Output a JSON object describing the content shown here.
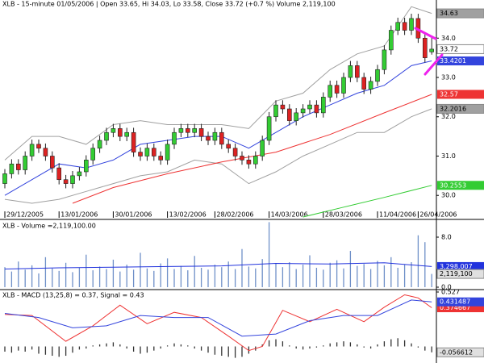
{
  "chart_data": [
    {
      "type": "candlestick",
      "title": "XLB - 15-minute 01/05/2006 | Open 33.65, Hi 34.03, Lo 33.58, Close 33.72 (+0.7 %) Volume 2,119,100",
      "categories": [
        "29/12/2005",
        null,
        null,
        null,
        null,
        null,
        null,
        null,
        "13/01/2006",
        null,
        null,
        null,
        null,
        null,
        null,
        null,
        "30/01/2006",
        null,
        null,
        null,
        null,
        null,
        null,
        null,
        "13/02/2006",
        null,
        null,
        null,
        null,
        null,
        null,
        "28/02/2006",
        null,
        null,
        null,
        null,
        null,
        null,
        null,
        "14/03/2006",
        null,
        null,
        null,
        null,
        null,
        null,
        null,
        "28/03/2006",
        null,
        null,
        null,
        null,
        null,
        null,
        null,
        "11/04/2006",
        null,
        null,
        null,
        null,
        null,
        "26/04/2006",
        null,
        null
      ],
      "open": [
        30.3,
        30.55,
        30.8,
        30.65,
        31.0,
        31.3,
        31.2,
        31.0,
        30.7,
        30.4,
        30.3,
        30.5,
        30.6,
        30.9,
        31.2,
        31.4,
        31.6,
        31.7,
        31.5,
        31.6,
        31.1,
        31.0,
        31.2,
        31.0,
        30.9,
        31.3,
        31.6,
        31.7,
        31.6,
        31.7,
        31.5,
        31.4,
        31.6,
        31.3,
        31.2,
        31.0,
        30.9,
        30.8,
        31.0,
        31.4,
        32.0,
        32.3,
        32.2,
        31.9,
        32.1,
        32.2,
        32.3,
        32.1,
        32.5,
        32.8,
        32.6,
        33.0,
        33.3,
        33.0,
        32.7,
        32.9,
        33.2,
        33.7,
        34.2,
        34.4,
        34.2,
        34.5,
        34.0,
        33.65
      ],
      "high": [
        30.67,
        30.92,
        30.92,
        31.12,
        31.42,
        31.42,
        31.32,
        31.12,
        30.82,
        30.52,
        30.62,
        30.72,
        31.02,
        31.32,
        31.52,
        31.72,
        31.82,
        31.82,
        31.72,
        31.72,
        31.22,
        31.32,
        31.32,
        31.12,
        31.42,
        31.72,
        31.82,
        31.82,
        31.82,
        31.82,
        31.62,
        31.72,
        31.72,
        31.42,
        31.32,
        31.12,
        31.02,
        31.12,
        31.52,
        32.12,
        32.42,
        32.42,
        32.32,
        32.22,
        32.32,
        32.42,
        32.42,
        32.62,
        32.92,
        32.92,
        33.12,
        33.42,
        33.42,
        33.12,
        33.02,
        33.32,
        33.82,
        34.32,
        34.52,
        34.52,
        34.62,
        34.62,
        34.12,
        34.03
      ],
      "low": [
        30.18,
        30.43,
        30.53,
        30.53,
        30.88,
        31.08,
        30.88,
        30.58,
        30.28,
        30.18,
        30.18,
        30.38,
        30.48,
        30.78,
        31.08,
        31.28,
        31.48,
        31.38,
        31.38,
        30.98,
        30.88,
        30.88,
        30.88,
        30.78,
        30.78,
        31.18,
        31.48,
        31.48,
        31.48,
        31.38,
        31.28,
        31.28,
        31.18,
        31.08,
        30.88,
        30.78,
        30.68,
        30.68,
        30.88,
        31.28,
        31.88,
        32.08,
        31.78,
        31.78,
        31.98,
        32.08,
        31.98,
        31.98,
        32.38,
        32.48,
        32.48,
        32.88,
        32.88,
        32.58,
        32.58,
        32.78,
        33.08,
        33.58,
        34.08,
        34.08,
        34.08,
        33.88,
        33.38,
        33.58
      ],
      "close": [
        30.55,
        30.8,
        30.65,
        31.0,
        31.3,
        31.2,
        31.0,
        30.7,
        30.4,
        30.3,
        30.5,
        30.6,
        30.9,
        31.2,
        31.4,
        31.6,
        31.7,
        31.5,
        31.6,
        31.1,
        31.0,
        31.2,
        31.0,
        30.9,
        31.3,
        31.6,
        31.7,
        31.6,
        31.7,
        31.5,
        31.4,
        31.6,
        31.3,
        31.2,
        31.0,
        30.9,
        30.8,
        31.0,
        31.4,
        32.0,
        32.3,
        32.2,
        31.9,
        32.1,
        32.2,
        32.3,
        32.1,
        32.5,
        32.8,
        32.6,
        33.0,
        33.3,
        33.0,
        32.7,
        32.9,
        33.2,
        33.7,
        34.2,
        34.4,
        34.2,
        34.5,
        34.0,
        33.5,
        33.72
      ],
      "up_color": "#33cc33",
      "down_color": "#dd2222",
      "series": [
        {
          "color": "#a0a0a0",
          "x": [
            0,
            4,
            8,
            12,
            16,
            20,
            24,
            28,
            32,
            36,
            40,
            44,
            48,
            52,
            56,
            60,
            63
          ],
          "values": [
            30.9,
            31.5,
            31.5,
            31.3,
            31.8,
            31.9,
            31.8,
            31.8,
            31.8,
            31.7,
            32.4,
            32.6,
            33.2,
            33.6,
            33.8,
            34.8,
            34.63
          ]
        },
        {
          "color": "#a0a0a0",
          "x": [
            0,
            4,
            8,
            12,
            16,
            20,
            24,
            28,
            32,
            36,
            40,
            44,
            48,
            52,
            56,
            60,
            63
          ],
          "values": [
            29.9,
            29.8,
            29.9,
            30.1,
            30.3,
            30.5,
            30.6,
            30.9,
            30.8,
            30.3,
            30.6,
            31.0,
            31.3,
            31.6,
            31.6,
            32.0,
            32.2016
          ]
        },
        {
          "color": "#3344dd",
          "x": [
            0,
            4,
            8,
            12,
            16,
            20,
            24,
            28,
            32,
            36,
            40,
            44,
            48,
            52,
            56,
            60,
            63
          ],
          "values": [
            30.0,
            30.4,
            30.8,
            30.7,
            30.9,
            31.3,
            31.4,
            31.5,
            31.5,
            31.2,
            31.6,
            32.0,
            32.3,
            32.6,
            32.8,
            33.3,
            33.4201
          ]
        },
        {
          "color": "#ee3333",
          "x": [
            10,
            16,
            24,
            32,
            40,
            48,
            56,
            63
          ],
          "values": [
            29.8,
            30.2,
            30.55,
            30.85,
            31.1,
            31.55,
            32.1,
            32.57
          ]
        },
        {
          "color": "#33cc33",
          "x": [
            44,
            50,
            56,
            63
          ],
          "values": [
            29.45,
            29.7,
            29.95,
            30.2553
          ]
        }
      ],
      "ylim": [
        29.43,
        34.97
      ],
      "yticks": [
        {
          "value": 30,
          "label": "30.0"
        },
        {
          "value": 31,
          "label": "31.0"
        },
        {
          "value": 32,
          "label": "32.0"
        },
        {
          "value": 33,
          "label": "33.0"
        },
        {
          "value": 34,
          "label": "34.0"
        }
      ]
    },
    {
      "type": "bar",
      "title": "XLB - Volume =2,119,100.00",
      "color": "#6f90c8",
      "values": [
        3.2,
        2.5,
        4.1,
        2.8,
        3.5,
        2.2,
        4.8,
        3.0,
        2.6,
        3.9,
        2.4,
        3.1,
        5.2,
        2.7,
        3.3,
        2.9,
        4.4,
        2.5,
        3.6,
        2.8,
        5.5,
        3.0,
        2.6,
        3.8,
        4.6,
        2.9,
        3.4,
        2.7,
        5.0,
        3.1,
        2.8,
        3.6,
        3.2,
        4.1,
        2.9,
        6.1,
        3.3,
        3.0,
        4.5,
        10.4,
        3.8,
        3.2,
        4.0,
        2.9,
        3.6,
        5.1,
        3.1,
        2.8,
        3.9,
        4.3,
        3.0,
        5.8,
        3.4,
        3.7,
        2.9,
        4.2,
        3.5,
        4.8,
        3.1,
        3.6,
        4.0,
        8.3,
        7.2,
        2.1191
      ],
      "value_labels": [
        null,
        null,
        null,
        null,
        null,
        null,
        null,
        null,
        null,
        null,
        null,
        null,
        null,
        null,
        null,
        null,
        null,
        null,
        null,
        null,
        null,
        null,
        null,
        null,
        null,
        null,
        null,
        null,
        null,
        null,
        null,
        null,
        null,
        null,
        null,
        null,
        null,
        null,
        null,
        null,
        null,
        null,
        null,
        null,
        null,
        null,
        null,
        null,
        null,
        null,
        null,
        null,
        null,
        null,
        null,
        null,
        null,
        null,
        null,
        null,
        null,
        null,
        null,
        "2,119,100"
      ],
      "series": [
        {
          "color": "#2233dd",
          "x": [
            0,
            8,
            16,
            24,
            32,
            40,
            48,
            56,
            63
          ],
          "values": [
            2.9,
            3.1,
            3.2,
            3.3,
            3.4,
            3.8,
            3.7,
            3.9,
            3.298007
          ],
          "value_labels": [
            null,
            null,
            null,
            null,
            null,
            null,
            null,
            null,
            "3,298,007"
          ]
        }
      ],
      "ylim": [
        0,
        10.45
      ],
      "yticks": [
        {
          "value": 0,
          "label": "0.0"
        },
        {
          "value": 8,
          "label": "8.0"
        }
      ]
    },
    {
      "type": "line",
      "title": "XLB - MACD (13,25,8) = 0.37, Signal = 0.43",
      "series": [
        {
          "color": "#ee3333",
          "x": [
            0,
            4,
            9,
            13,
            17,
            21,
            25,
            29,
            33,
            36,
            38,
            41,
            45,
            49,
            53,
            56,
            59,
            61,
            63
          ],
          "values": [
            0.31,
            0.3,
            0.05,
            0.2,
            0.4,
            0.22,
            0.33,
            0.28,
            0.1,
            -0.04,
            0.0,
            0.35,
            0.24,
            0.36,
            0.24,
            0.38,
            0.5,
            0.47,
            0.374667
          ]
        },
        {
          "color": "#3344dd",
          "x": [
            0,
            5,
            10,
            15,
            20,
            25,
            30,
            35,
            40,
            45,
            50,
            55,
            60,
            63
          ],
          "values": [
            0.32,
            0.28,
            0.18,
            0.2,
            0.3,
            0.28,
            0.28,
            0.1,
            0.12,
            0.25,
            0.3,
            0.3,
            0.45,
            0.431487
          ]
        }
      ],
      "histogram": {
        "color": "#333333",
        "values": [
          -0.05,
          -0.06,
          -0.04,
          -0.05,
          -0.03,
          -0.07,
          -0.08,
          -0.09,
          -0.1,
          -0.09,
          -0.06,
          -0.03,
          -0.02,
          0.01,
          0.02,
          0.03,
          0.04,
          0.02,
          -0.02,
          -0.05,
          -0.07,
          -0.06,
          -0.04,
          -0.02,
          0.01,
          0.03,
          0.02,
          0.01,
          -0.02,
          -0.04,
          -0.06,
          -0.08,
          -0.09,
          -0.1,
          -0.11,
          -0.1,
          -0.07,
          -0.04,
          0.02,
          0.06,
          0.07,
          0.05,
          0.01,
          -0.02,
          -0.03,
          -0.02,
          -0.01,
          0.01,
          0.03,
          0.04,
          0.05,
          0.04,
          0.02,
          -0.01,
          -0.02,
          0.02,
          0.05,
          0.07,
          0.08,
          0.06,
          0.03,
          -0.01,
          -0.04,
          -0.056612
        ]
      },
      "ylim": [
        -0.16,
        0.527
      ],
      "yticks": [
        0.527
      ]
    }
  ]
}
